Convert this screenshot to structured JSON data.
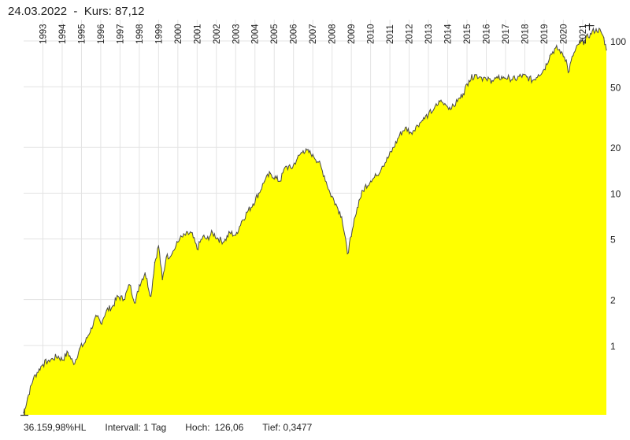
{
  "header": {
    "date": "24.03.2022",
    "separator": "-",
    "price_label": "Kurs: 87,12"
  },
  "footer": {
    "performance": "36.159,98%HL",
    "interval": "Intervall: 1 Tag",
    "high_label": "Hoch:",
    "high_value": "126,06",
    "low_label": "Tief:",
    "low_value": "0,3477"
  },
  "colors": {
    "area": "#ffff00",
    "line": "#4a4a4a",
    "grid": "#e3e3e3",
    "axis_text": "#222222"
  },
  "chart_data": {
    "type": "area",
    "title": "24.03.2022 - Kurs: 87,12",
    "yscale": "log",
    "ylim": [
      0.35,
      130
    ],
    "xlim": [
      1992.0,
      2022.23
    ],
    "x_ticks": [
      1993,
      1994,
      1995,
      1996,
      1997,
      1998,
      1999,
      2000,
      2001,
      2002,
      2003,
      2004,
      2005,
      2006,
      2007,
      2008,
      2009,
      2010,
      2011,
      2012,
      2013,
      2014,
      2015,
      2016,
      2017,
      2018,
      2019,
      2020,
      2021
    ],
    "x_tick_labels": [
      "1993",
      "1994",
      "1995",
      "1996",
      "1997",
      "1998",
      "1999",
      "2000",
      "2001",
      "2002",
      "2003",
      "2004",
      "2005",
      "2006",
      "2007",
      "2008",
      "2009",
      "2010",
      "2011",
      "2012",
      "2013",
      "2014",
      "2015",
      "2016",
      "2017",
      "2018",
      "2019",
      "2020",
      "2021"
    ],
    "y_ticks": [
      1,
      2,
      5,
      10,
      20,
      50,
      100
    ],
    "y_tick_labels": [
      "1",
      "2",
      "5",
      "10",
      "20",
      "50",
      "100"
    ],
    "grid": true,
    "series": [
      {
        "name": "Kurs",
        "x": [
          1992.0,
          1992.2,
          1992.5,
          1992.8,
          1993.0,
          1993.3,
          1993.5,
          1993.8,
          1994.0,
          1994.3,
          1994.6,
          1994.9,
          1995.2,
          1995.5,
          1995.8,
          1996.0,
          1996.3,
          1996.6,
          1996.9,
          1997.2,
          1997.5,
          1997.8,
          1998.0,
          1998.3,
          1998.6,
          1998.8,
          1999.0,
          1999.2,
          1999.4,
          1999.7,
          1999.9,
          2000.1,
          2000.4,
          2000.7,
          2001.0,
          2001.3,
          2001.5,
          2001.8,
          2002.1,
          2002.4,
          2002.7,
          2003.0,
          2003.3,
          2003.6,
          2003.9,
          2004.2,
          2004.5,
          2004.8,
          2005.1,
          2005.3,
          2005.6,
          2005.9,
          2006.2,
          2006.5,
          2006.8,
          2007.0,
          2007.3,
          2007.6,
          2007.9,
          2008.2,
          2008.5,
          2008.8,
          2009.0,
          2009.2,
          2009.4,
          2009.7,
          2010.0,
          2010.3,
          2010.6,
          2010.9,
          2011.2,
          2011.5,
          2011.8,
          2012.1,
          2012.4,
          2012.7,
          2013.0,
          2013.3,
          2013.6,
          2013.9,
          2014.2,
          2014.5,
          2014.8,
          2015.1,
          2015.4,
          2015.7,
          2016.0,
          2016.3,
          2016.6,
          2016.9,
          2017.2,
          2017.5,
          2017.8,
          2018.1,
          2018.4,
          2018.7,
          2019.0,
          2019.3,
          2019.6,
          2019.9,
          2020.15,
          2020.25,
          2020.5,
          2020.8,
          2021.1,
          2021.4,
          2021.7,
          2021.95,
          2022.1,
          2022.23
        ],
        "values": [
          0.36,
          0.45,
          0.6,
          0.7,
          0.75,
          0.8,
          0.82,
          0.85,
          0.8,
          0.9,
          0.75,
          0.95,
          1.05,
          1.3,
          1.55,
          1.4,
          1.7,
          1.8,
          2.1,
          2.0,
          2.5,
          1.9,
          2.5,
          3.0,
          2.1,
          3.5,
          4.5,
          2.7,
          3.8,
          4.0,
          4.5,
          5.0,
          5.3,
          5.5,
          4.3,
          5.2,
          5.0,
          5.5,
          5.0,
          4.8,
          5.5,
          5.3,
          6.5,
          7.5,
          8.5,
          10.0,
          12.0,
          13.5,
          12.5,
          12.0,
          15.0,
          14.5,
          17.0,
          19.0,
          18.5,
          18.0,
          16.0,
          13.0,
          10.0,
          8.5,
          7.0,
          4.0,
          5.2,
          7.0,
          9.0,
          11.0,
          12.0,
          13.0,
          15.0,
          17.0,
          20.0,
          24.0,
          27.0,
          25.0,
          28.0,
          30.0,
          33.0,
          36.0,
          40.0,
          38.0,
          36.0,
          40.0,
          45.0,
          55.0,
          60.0,
          58.0,
          56.0,
          55.0,
          57.0,
          58.0,
          57.0,
          56.0,
          59.0,
          58.0,
          55.0,
          60.0,
          65.0,
          80.0,
          90.0,
          85.0,
          75.0,
          62.0,
          80.0,
          95.0,
          100.0,
          112.0,
          120.0,
          115.0,
          105.0,
          87.12
        ]
      }
    ]
  }
}
